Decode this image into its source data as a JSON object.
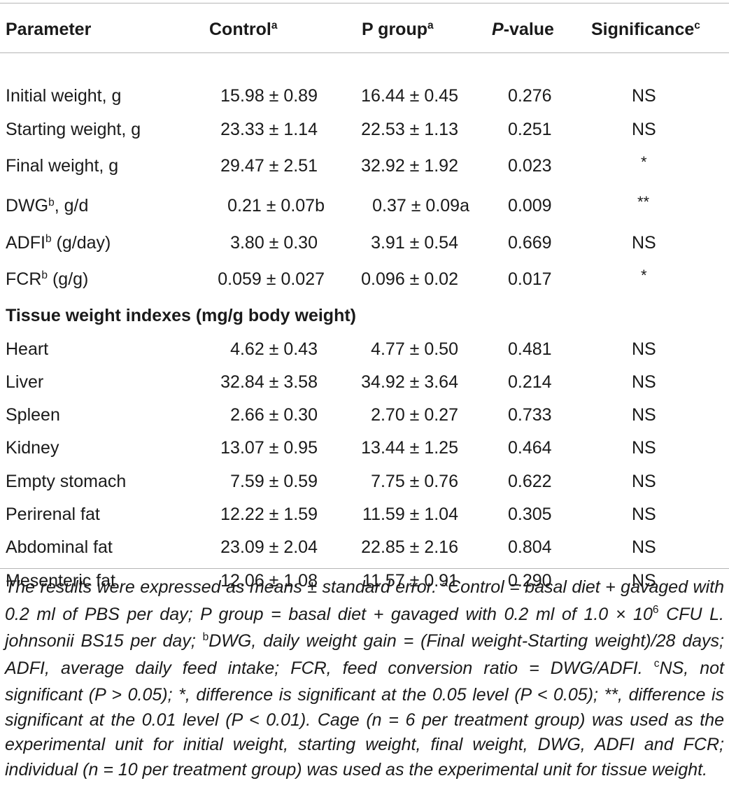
{
  "table": {
    "headers": {
      "parameter": "Parameter",
      "control": "Control",
      "control_sup": "a",
      "pgroup": "P group",
      "pgroup_sup": "a",
      "pvalue_italic": "P",
      "pvalue_rest": "-value",
      "significance": "Significance",
      "significance_sup": "c"
    },
    "rows_growth": [
      {
        "param": "Initial weight, g",
        "sup": "",
        "param_suffix": "",
        "control": "15.98 ± 0.89",
        "pgroup": "16.44 ± 0.45",
        "pvalue": "0.276",
        "sig": "NS"
      },
      {
        "param": "Starting weight, g",
        "sup": "",
        "param_suffix": "",
        "control": "23.33 ± 1.14",
        "pgroup": "22.53 ± 1.13",
        "pvalue": "0.251",
        "sig": "NS"
      },
      {
        "param": "Final weight, g",
        "sup": "",
        "param_suffix": "",
        "control": "29.47 ± 2.51",
        "pgroup": "32.92 ± 1.92",
        "pvalue": "0.023",
        "sig": "*"
      },
      {
        "param": "DWG",
        "sup": "b",
        "param_suffix": ", g/d",
        "control": "0.21 ± 0.07b",
        "pgroup": "0.37 ± 0.09a",
        "pvalue": "0.009",
        "sig": "**"
      },
      {
        "param": "ADFI",
        "sup": "b",
        "param_suffix": " (g/day)",
        "control": "3.80 ± 0.30",
        "pgroup": "3.91 ± 0.54",
        "pvalue": "0.669",
        "sig": "NS"
      },
      {
        "param": "FCR",
        "sup": "b",
        "param_suffix": " (g/g)",
        "control": "0.059 ± 0.027",
        "pgroup": "0.096 ± 0.02",
        "pvalue": "0.017",
        "sig": "*"
      }
    ],
    "section_title": "Tissue weight indexes (mg/g body weight)",
    "rows_tissue": [
      {
        "param": "Heart",
        "control": "4.62 ± 0.43",
        "pgroup": "4.77 ± 0.50",
        "pvalue": "0.481",
        "sig": "NS"
      },
      {
        "param": "Liver",
        "control": "32.84 ± 3.58",
        "pgroup": "34.92 ± 3.64",
        "pvalue": "0.214",
        "sig": "NS"
      },
      {
        "param": "Spleen",
        "control": "2.66 ± 0.30",
        "pgroup": "2.70 ± 0.27",
        "pvalue": "0.733",
        "sig": "NS"
      },
      {
        "param": "Kidney",
        "control": "13.07 ± 0.95",
        "pgroup": "13.44 ± 1.25",
        "pvalue": "0.464",
        "sig": "NS"
      },
      {
        "param": "Empty stomach",
        "control": "7.59 ± 0.59",
        "pgroup": "7.75 ± 0.76",
        "pvalue": "0.622",
        "sig": "NS"
      },
      {
        "param": "Perirenal fat",
        "control": "12.22 ± 1.59",
        "pgroup": "11.59 ± 1.04",
        "pvalue": "0.305",
        "sig": "NS"
      },
      {
        "param": "Abdominal fat",
        "control": "23.09 ± 2.04",
        "pgroup": "22.85 ± 2.16",
        "pvalue": "0.804",
        "sig": "NS"
      },
      {
        "param": "Mesenteric fat",
        "control": "12.06 ± 1.08",
        "pgroup": "11.57 ± 0.91",
        "pvalue": "0.290",
        "sig": "NS"
      }
    ]
  },
  "footnote": {
    "part1": "The results were expressed as means ± standard error. ",
    "sup_a": "a",
    "part2": "Control = basal diet + gavaged with 0.2 ml of PBS per day; P group = basal diet + gavaged with 0.2 ml of 1.0 × 10",
    "sup_6": "6",
    "part3": " CFU L. johnsonii BS15 per day; ",
    "sup_b": "b",
    "part4": "DWG, daily weight gain = (Final weight-Starting weight)/28 days; ADFI, average daily feed intake; FCR, feed conversion ratio = DWG/ADFI. ",
    "sup_c": "c",
    "part5": "NS, not significant (P > 0.05); *, difference is significant at the 0.05 level (P < 0.05); **, difference is significant at the 0.01 level (P < 0.01). Cage (n = 6 per treatment group) was used as the experimental unit for initial weight, starting weight, final weight, DWG, ADFI and FCR; individual (n = 10 per treatment group) was used as the experimental unit for tissue weight."
  }
}
